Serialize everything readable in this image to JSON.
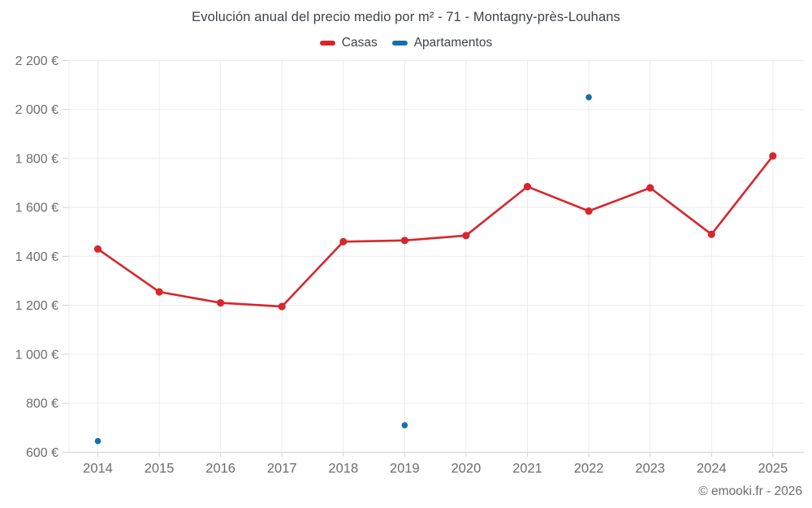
{
  "chart_data": {
    "type": "line",
    "title": "Evolución anual del precio medio por m² - 71 - Montagny-près-Louhans",
    "categories": [
      "2014",
      "2015",
      "2016",
      "2017",
      "2018",
      "2019",
      "2020",
      "2021",
      "2022",
      "2023",
      "2024",
      "2025"
    ],
    "series": [
      {
        "name": "Casas",
        "color": "#d7262c",
        "style": "line+markers",
        "values": [
          1430,
          1255,
          1210,
          1195,
          1460,
          1465,
          1485,
          1685,
          1585,
          1680,
          1490,
          1810
        ]
      },
      {
        "name": "Apartamentos",
        "color": "#1370a8",
        "style": "markers",
        "values": [
          645,
          null,
          null,
          null,
          null,
          710,
          null,
          null,
          2050,
          null,
          null,
          null
        ]
      }
    ],
    "ylim": [
      600,
      2200
    ],
    "ytick_step": 200,
    "ytick_suffix": " €",
    "ytick_labels": [
      "600 €",
      "800 €",
      "1 000 €",
      "1 200 €",
      "1 400 €",
      "1 600 €",
      "1 800 €",
      "2 000 €",
      "2 200 €"
    ],
    "grid": true,
    "legend_position": "top"
  },
  "footer": {
    "copyright": "© emooki.fr - 2026"
  }
}
